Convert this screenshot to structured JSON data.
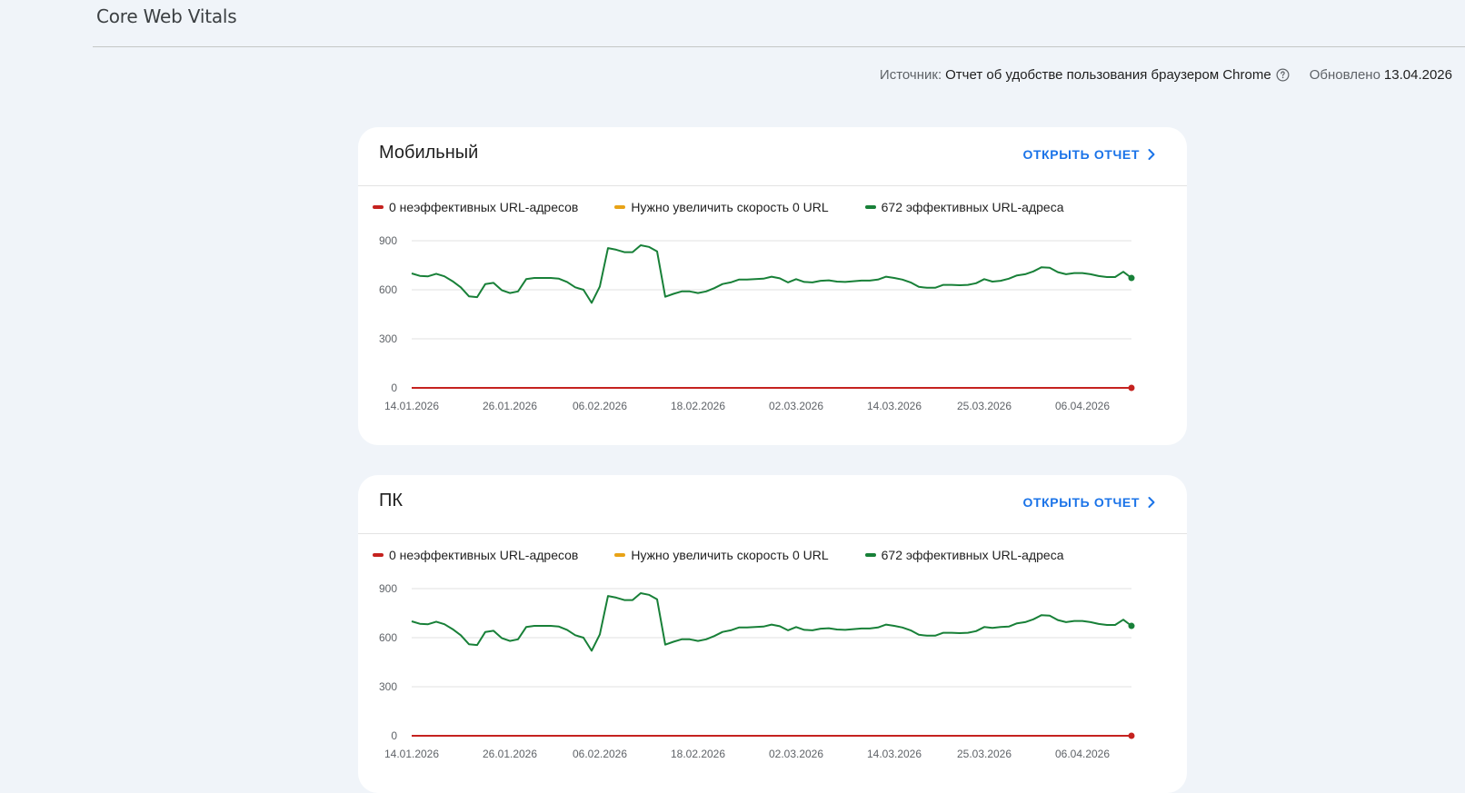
{
  "header": {
    "title": "Core Web Vitals",
    "source_label": "Источник:",
    "source_value": "Отчет об удобстве пользования браузером Chrome",
    "updated_label": "Обновлено",
    "updated_value": "13.04.2026"
  },
  "colors": {
    "poor": "#c5221f",
    "needs_improvement": "#e8a317",
    "good": "#188038",
    "accent": "#1a73e8"
  },
  "icons": {
    "help": "help-circle-icon",
    "chevron": "chevron-right-icon"
  },
  "cards": [
    {
      "title": "Мобильный",
      "open_report": "ОТКРЫТЬ ОТЧЕТ",
      "legend": {
        "poor": "0 неэффективных URL-адресов",
        "needs": "Нужно увеличить скорость 0 URL",
        "good": "672 эффективных URL-адреса"
      }
    },
    {
      "title": "ПК",
      "open_report": "ОТКРЫТЬ ОТЧЕТ",
      "legend": {
        "poor": "0 неэффективных URL-адресов",
        "needs": "Нужно увеличить скорость 0 URL",
        "good": "672 эффективных URL-адреса"
      }
    }
  ],
  "chart_data": [
    {
      "type": "line",
      "y_ticks": [
        "900",
        "600",
        "300",
        "0"
      ],
      "ylim": [
        0,
        900
      ],
      "x_ticks": [
        "14.01.2026",
        "26.01.2026",
        "06.02.2026",
        "18.02.2026",
        "02.03.2026",
        "14.03.2026",
        "25.03.2026",
        "06.04.2026"
      ],
      "x_start": "2026-01-14",
      "x_end": "2026-04-12",
      "grid": true,
      "series": [
        {
          "name": "0 неэффективных URL-адресов",
          "color": "#c5221f",
          "values": "zeros"
        },
        {
          "name": "Нужно увеличить скорость 0 URL",
          "color": "#e8a317",
          "values": "zeros"
        },
        {
          "name": "672 эффективных URL-адреса",
          "color": "#188038",
          "values": [
            700,
            685,
            682,
            698,
            682,
            652,
            615,
            560,
            555,
            635,
            642,
            598,
            580,
            590,
            665,
            672,
            672,
            672,
            668,
            648,
            615,
            600,
            520,
            620,
            855,
            845,
            830,
            830,
            872,
            862,
            835,
            557,
            575,
            590,
            590,
            580,
            590,
            610,
            635,
            645,
            662,
            662,
            665,
            668,
            680,
            670,
            645,
            665,
            648,
            645,
            655,
            658,
            650,
            648,
            652,
            656,
            656,
            662,
            680,
            672,
            662,
            645,
            618,
            612,
            612,
            630,
            630,
            628,
            630,
            640,
            665,
            650,
            655,
            668,
            688,
            695,
            712,
            738,
            735,
            708,
            695,
            702,
            702,
            695,
            684,
            678,
            678,
            710,
            672
          ]
        }
      ]
    },
    {
      "type": "line",
      "y_ticks": [
        "900",
        "600",
        "300",
        "0"
      ],
      "ylim": [
        0,
        900
      ],
      "x_ticks": [
        "14.01.2026",
        "26.01.2026",
        "06.02.2026",
        "18.02.2026",
        "02.03.2026",
        "14.03.2026",
        "25.03.2026",
        "06.04.2026"
      ],
      "x_start": "2026-01-14",
      "x_end": "2026-04-12",
      "grid": true,
      "series": [
        {
          "name": "0 неэффективных URL-адресов",
          "color": "#c5221f",
          "values": "zeros"
        },
        {
          "name": "Нужно увеличить скорость 0 URL",
          "color": "#e8a317",
          "values": "zeros"
        },
        {
          "name": "672 эффективных URL-адреса",
          "color": "#188038",
          "values": [
            700,
            685,
            682,
            698,
            682,
            652,
            615,
            560,
            555,
            635,
            642,
            598,
            580,
            590,
            665,
            672,
            672,
            672,
            668,
            648,
            615,
            600,
            520,
            620,
            855,
            845,
            830,
            830,
            872,
            862,
            835,
            557,
            575,
            590,
            590,
            580,
            590,
            610,
            635,
            645,
            662,
            662,
            665,
            668,
            680,
            670,
            645,
            665,
            648,
            645,
            655,
            658,
            650,
            648,
            652,
            656,
            656,
            662,
            680,
            672,
            662,
            645,
            618,
            612,
            612,
            630,
            630,
            628,
            630,
            640,
            665,
            660,
            665,
            668,
            688,
            695,
            712,
            738,
            735,
            708,
            695,
            702,
            702,
            695,
            684,
            678,
            678,
            710,
            672
          ]
        }
      ]
    }
  ]
}
